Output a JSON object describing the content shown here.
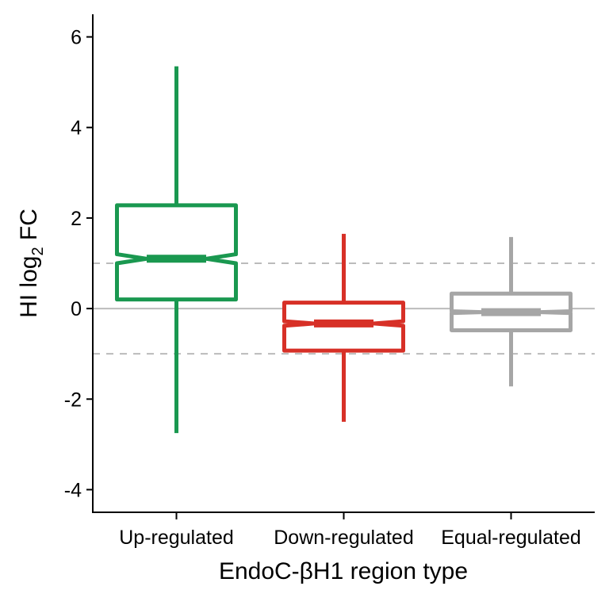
{
  "chart_data": {
    "type": "boxplot",
    "notched": true,
    "xlabel": "EndoC-βH1 region type",
    "ylabel": {
      "main": "HI log",
      "sub": "2",
      "tail": " FC"
    },
    "ylim": [
      -4.5,
      6.5
    ],
    "yticks": [
      -4,
      -2,
      0,
      2,
      4,
      6
    ],
    "ytick_labels": [
      "-4",
      "-2",
      "0",
      "2",
      "4",
      "6"
    ],
    "reference_lines": [
      {
        "y": 0,
        "style": "solid",
        "color": "#bbbbbb"
      },
      {
        "y": 1,
        "style": "dashed",
        "color": "#bbbbbb"
      },
      {
        "y": -1,
        "style": "dashed",
        "color": "#bbbbbb"
      }
    ],
    "categories": [
      "Up-regulated",
      "Down-regulated",
      "Equal-regulated"
    ],
    "boxes": [
      {
        "category": "Up-regulated",
        "color": "#1a9850",
        "whisker_low": -2.75,
        "q1": 0.2,
        "median": 1.1,
        "q3": 2.28,
        "whisker_high": 5.35,
        "notch_low": 1.0,
        "notch_high": 1.2
      },
      {
        "category": "Down-regulated",
        "color": "#d73027",
        "whisker_low": -2.5,
        "q1": -0.93,
        "median": -0.33,
        "q3": 0.13,
        "whisker_high": 1.65,
        "notch_low": -0.38,
        "notch_high": -0.28
      },
      {
        "category": "Equal-regulated",
        "color": "#a6a6a6",
        "whisker_low": -1.72,
        "q1": -0.48,
        "median": -0.08,
        "q3": 0.33,
        "whisker_high": 1.58,
        "notch_low": -0.1,
        "notch_high": -0.06
      }
    ]
  }
}
